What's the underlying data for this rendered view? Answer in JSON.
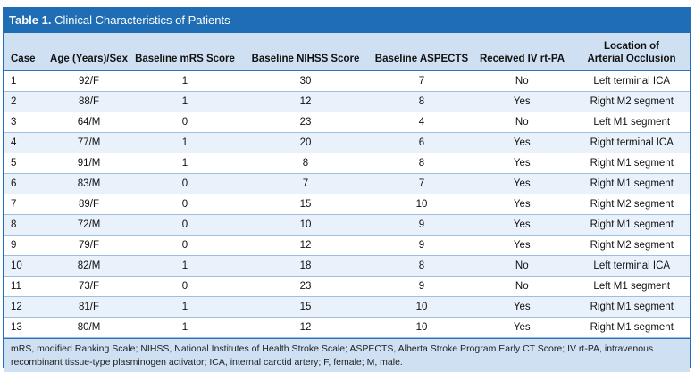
{
  "table": {
    "label": "Table 1.",
    "title": "Clinical Characteristics of Patients",
    "headers": {
      "case": "Case",
      "age_sex": "Age (Years)/Sex",
      "mrs": "Baseline mRS Score",
      "nihss": "Baseline NIHSS Score",
      "aspects": "Baseline ASPECTS",
      "ivrtpa": "Received IV rt-PA",
      "location_line1": "Location of",
      "location_line2": "Arterial Occlusion"
    },
    "rows": [
      {
        "case": "1",
        "age_sex": "92/F",
        "mrs": "1",
        "nihss": "30",
        "aspects": "7",
        "ivrtpa": "No",
        "location": "Left terminal ICA"
      },
      {
        "case": "2",
        "age_sex": "88/F",
        "mrs": "1",
        "nihss": "12",
        "aspects": "8",
        "ivrtpa": "Yes",
        "location": "Right M2 segment"
      },
      {
        "case": "3",
        "age_sex": "64/M",
        "mrs": "0",
        "nihss": "23",
        "aspects": "4",
        "ivrtpa": "No",
        "location": "Left M1 segment"
      },
      {
        "case": "4",
        "age_sex": "77/M",
        "mrs": "1",
        "nihss": "20",
        "aspects": "6",
        "ivrtpa": "Yes",
        "location": "Right terminal ICA"
      },
      {
        "case": "5",
        "age_sex": "91/M",
        "mrs": "1",
        "nihss": "8",
        "aspects": "8",
        "ivrtpa": "Yes",
        "location": "Right M1 segment"
      },
      {
        "case": "6",
        "age_sex": "83/M",
        "mrs": "0",
        "nihss": "7",
        "aspects": "7",
        "ivrtpa": "Yes",
        "location": "Right M1 segment"
      },
      {
        "case": "7",
        "age_sex": "89/F",
        "mrs": "0",
        "nihss": "15",
        "aspects": "10",
        "ivrtpa": "Yes",
        "location": "Right M2 segment"
      },
      {
        "case": "8",
        "age_sex": "72/M",
        "mrs": "0",
        "nihss": "10",
        "aspects": "9",
        "ivrtpa": "Yes",
        "location": "Right M1 segment"
      },
      {
        "case": "9",
        "age_sex": "79/F",
        "mrs": "0",
        "nihss": "12",
        "aspects": "9",
        "ivrtpa": "Yes",
        "location": "Right M2 segment"
      },
      {
        "case": "10",
        "age_sex": "82/M",
        "mrs": "1",
        "nihss": "18",
        "aspects": "8",
        "ivrtpa": "No",
        "location": "Left terminal ICA"
      },
      {
        "case": "11",
        "age_sex": "73/F",
        "mrs": "0",
        "nihss": "23",
        "aspects": "9",
        "ivrtpa": "No",
        "location": "Left M1 segment"
      },
      {
        "case": "12",
        "age_sex": "81/F",
        "mrs": "1",
        "nihss": "15",
        "aspects": "10",
        "ivrtpa": "Yes",
        "location": "Right M1 segment"
      },
      {
        "case": "13",
        "age_sex": "80/M",
        "mrs": "1",
        "nihss": "12",
        "aspects": "10",
        "ivrtpa": "Yes",
        "location": "Right M1 segment"
      }
    ],
    "footnote": "mRS, modified Ranking Scale; NIHSS, National Institutes of Health Stroke Scale; ASPECTS, Alberta Stroke Program Early CT Score; IV rt-PA, intravenous recombinant tissue-type plasminogen activator; ICA, internal carotid artery; F, female; M, male."
  },
  "colors": {
    "header_bar": "#1f6db5",
    "header_row": "#cfe0f3",
    "stripe": "#e9f1fa",
    "rule": "#9dbfe3"
  }
}
